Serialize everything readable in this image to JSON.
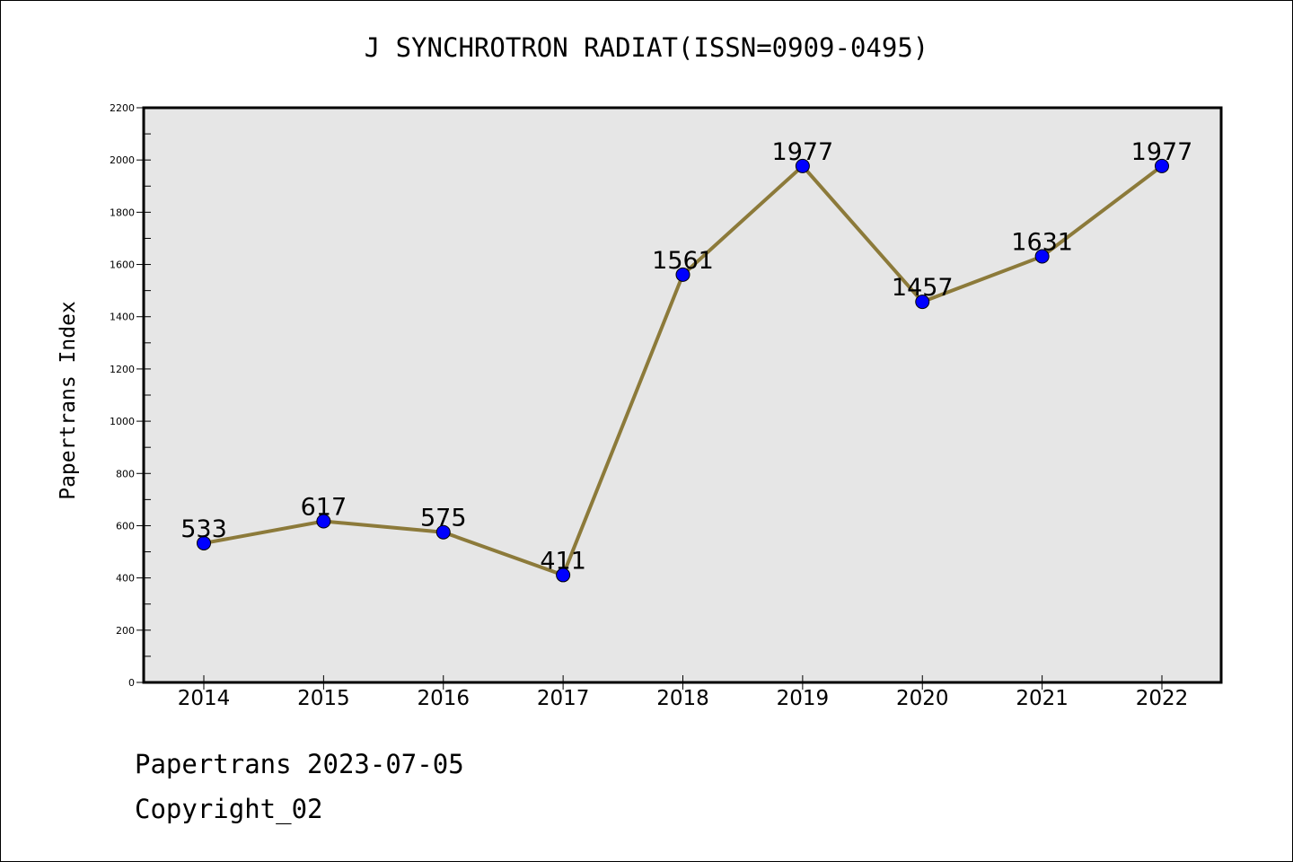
{
  "chart_data": {
    "type": "line",
    "title": "J SYNCHROTRON RADIAT(ISSN=0909-0495)",
    "xlabel": "",
    "ylabel": "Papertrans Index",
    "categories": [
      "2014",
      "2015",
      "2016",
      "2017",
      "2018",
      "2019",
      "2020",
      "2021",
      "2022"
    ],
    "values": [
      533,
      617,
      575,
      411,
      1561,
      1977,
      1457,
      1631,
      1977
    ],
    "ylim": [
      0,
      2200
    ],
    "yticks": [
      0,
      200,
      400,
      600,
      800,
      1000,
      1200,
      1400,
      1600,
      1800,
      2000,
      2200
    ],
    "grid": false,
    "legend": "none",
    "colors": {
      "line": "#8c7a3a",
      "marker": "#0000ff",
      "plot_background": "#e6e6e6"
    }
  },
  "footer": {
    "date_text": "Papertrans 2023-07-05",
    "copyright_text": "Copyright_02"
  }
}
